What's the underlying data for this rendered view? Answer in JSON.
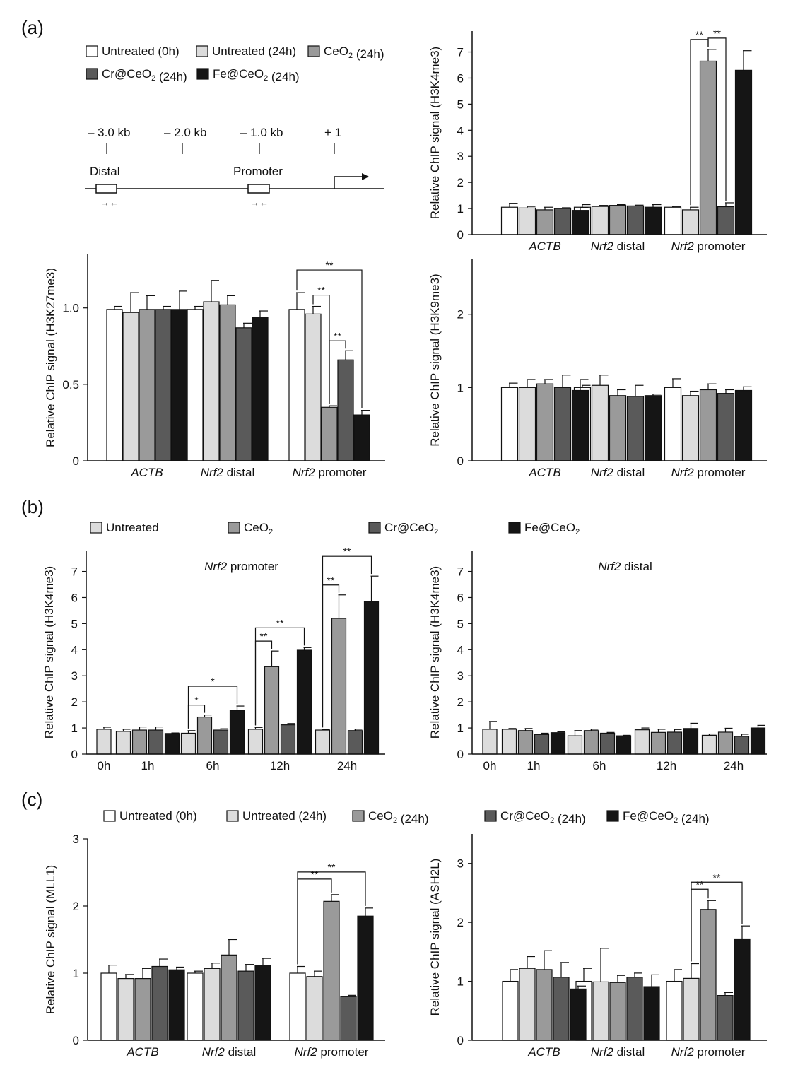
{
  "panel_labels": {
    "a": "(a)",
    "b": "(b)",
    "c": "(c)"
  },
  "colors": {
    "untreated_0h": "#ffffff",
    "untreated_24h": "#dcdcdc",
    "ceo2": "#9a9a9a",
    "cr_ceo2": "#5a5a5a",
    "fe_ceo2": "#151515",
    "axis": "#111111"
  },
  "legend_a": {
    "items": [
      {
        "key": "untreated_0h",
        "label": "Untreated (0h)"
      },
      {
        "key": "untreated_24h",
        "label": "Untreated (24h)"
      },
      {
        "key": "ceo2",
        "label": "CeO₂ (24h)"
      },
      {
        "key": "cr_ceo2",
        "label": "Cr@CeO₂ (24h)"
      },
      {
        "key": "fe_ceo2",
        "label": "Fe@CeO₂ (24h)"
      }
    ]
  },
  "gene_diagram": {
    "positions": [
      "– 3.0 kb",
      "– 2.0 kb",
      "– 1.0 kb",
      "+ 1"
    ],
    "regions": [
      "Distal",
      "Promoter"
    ],
    "arrows": "→←"
  },
  "legend_b": {
    "items": [
      {
        "key": "untreated_24h",
        "label": "Untreated"
      },
      {
        "key": "ceo2",
        "label": "CeO₂"
      },
      {
        "key": "cr_ceo2",
        "label": "Cr@CeO₂"
      },
      {
        "key": "fe_ceo2",
        "label": "Fe@CeO₂"
      }
    ]
  },
  "legend_c": {
    "items": [
      {
        "key": "untreated_0h",
        "label": "Untreated (0h)"
      },
      {
        "key": "untreated_24h",
        "label": "Untreated (24h)"
      },
      {
        "key": "ceo2",
        "label": "CeO₂ (24h)"
      },
      {
        "key": "cr_ceo2",
        "label": "Cr@CeO₂ (24h)"
      },
      {
        "key": "fe_ceo2",
        "label": "Fe@CeO₂ (24h)"
      }
    ]
  },
  "chart_data": [
    {
      "id": "a_h3k4me3",
      "type": "bar",
      "ylabel": "Relative ChIP signal (H3K4me3)",
      "ylim": [
        0,
        7.8
      ],
      "yticks": [
        "0",
        "1",
        "2",
        "3",
        "4",
        "5",
        "6",
        "7"
      ],
      "groups": [
        "ACTB",
        "Nrf2 distal",
        "Nrf2 promoter"
      ],
      "series": [
        {
          "name": "Untreated (0h)",
          "key": "untreated_0h",
          "values": [
            1.05,
            1.05,
            1.05
          ],
          "errors": [
            0.15,
            0.1,
            0.03
          ]
        },
        {
          "name": "Untreated (24h)",
          "key": "untreated_24h",
          "values": [
            1.02,
            1.08,
            0.95
          ],
          "errors": [
            0.06,
            0.04,
            0.1
          ]
        },
        {
          "name": "CeO₂ (24h)",
          "key": "ceo2",
          "values": [
            0.95,
            1.12,
            6.65
          ],
          "errors": [
            0.1,
            0.03,
            0.45
          ]
        },
        {
          "name": "Cr@CeO₂ (24h)",
          "key": "cr_ceo2",
          "values": [
            1.0,
            1.1,
            1.07
          ],
          "errors": [
            0.03,
            0.03,
            0.15
          ]
        },
        {
          "name": "Fe@CeO₂ (24h)",
          "key": "fe_ceo2",
          "values": [
            0.93,
            1.05,
            6.3
          ],
          "errors": [
            0.1,
            0.1,
            0.75
          ]
        }
      ],
      "brackets": [
        {
          "group": 2,
          "from": 1,
          "to": 2,
          "label": "**"
        },
        {
          "group": 2,
          "from": 2,
          "to": 3,
          "label": "**"
        }
      ]
    },
    {
      "id": "a_h3k27me3",
      "type": "bar",
      "ylabel": "Relative ChIP signal (H3K27me3)",
      "ylim": [
        0,
        1.35
      ],
      "yticks": [
        "0",
        "0.5",
        "1.0"
      ],
      "groups": [
        "ACTB",
        "Nrf2 distal",
        "Nrf2 promoter"
      ],
      "series": [
        {
          "name": "Untreated (0h)",
          "key": "untreated_0h",
          "values": [
            0.99,
            0.99,
            0.99
          ],
          "errors": [
            0.02,
            0.02,
            0.11
          ]
        },
        {
          "name": "Untreated (24h)",
          "key": "untreated_24h",
          "values": [
            0.97,
            1.04,
            0.96
          ],
          "errors": [
            0.13,
            0.14,
            0.05
          ]
        },
        {
          "name": "CeO₂ (24h)",
          "key": "ceo2",
          "values": [
            0.99,
            1.02,
            0.35
          ],
          "errors": [
            0.09,
            0.06,
            0.01
          ]
        },
        {
          "name": "Cr@CeO₂ (24h)",
          "key": "cr_ceo2",
          "values": [
            0.99,
            0.87,
            0.66
          ],
          "errors": [
            0.02,
            0.03,
            0.06
          ]
        },
        {
          "name": "Fe@CeO₂ (24h)",
          "key": "fe_ceo2",
          "values": [
            0.99,
            0.94,
            0.3
          ],
          "errors": [
            0.12,
            0.04,
            0.03
          ]
        }
      ],
      "brackets": [
        {
          "group": 2,
          "from": 0,
          "to": 4,
          "label": "**"
        },
        {
          "group": 2,
          "from": 1,
          "to": 2,
          "label": "**"
        },
        {
          "group": 2,
          "from": 2,
          "to": 3,
          "label": "**"
        }
      ]
    },
    {
      "id": "a_h3k9me3",
      "type": "bar",
      "ylabel": "Relative ChIP signal (H3K9me3)",
      "ylim": [
        0,
        2.75
      ],
      "yticks": [
        "0",
        "1",
        "2"
      ],
      "groups": [
        "ACTB",
        "Nrf2 distal",
        "Nrf2 promoter"
      ],
      "series": [
        {
          "name": "Untreated (0h)",
          "key": "untreated_0h",
          "values": [
            1.0,
            1.0,
            1.0
          ],
          "errors": [
            0.06,
            0.03,
            0.12
          ]
        },
        {
          "name": "Untreated (24h)",
          "key": "untreated_24h",
          "values": [
            1.0,
            1.03,
            0.89
          ],
          "errors": [
            0.11,
            0.14,
            0.06
          ]
        },
        {
          "name": "CeO₂ (24h)",
          "key": "ceo2",
          "values": [
            1.05,
            0.89,
            0.97
          ],
          "errors": [
            0.06,
            0.08,
            0.08
          ]
        },
        {
          "name": "Cr@CeO₂ (24h)",
          "key": "cr_ceo2",
          "values": [
            1.0,
            0.88,
            0.92
          ],
          "errors": [
            0.17,
            0.15,
            0.05
          ]
        },
        {
          "name": "Fe@CeO₂ (24h)",
          "key": "fe_ceo2",
          "values": [
            0.96,
            0.89,
            0.96
          ],
          "errors": [
            0.15,
            0.02,
            0.05
          ]
        }
      ],
      "brackets": []
    },
    {
      "id": "b_promoter",
      "type": "bar",
      "title": "Nrf2 promoter",
      "ylabel": "Relative ChIP signal (H3K4me3)",
      "ylim": [
        0,
        7.8
      ],
      "yticks": [
        "0",
        "1",
        "2",
        "3",
        "4",
        "5",
        "6",
        "7"
      ],
      "groups": [
        "0h",
        "1h",
        "6h",
        "12h",
        "24h"
      ],
      "series": [
        {
          "name": "Untreated",
          "key": "untreated_24h",
          "values": [
            0.95,
            0.87,
            0.8,
            0.95,
            0.92
          ],
          "errors": [
            0.08,
            0.08,
            0.1,
            0.07,
            0.02
          ]
        },
        {
          "name": "CeO₂",
          "key": "ceo2",
          "values": [
            null,
            0.92,
            1.42,
            3.35,
            5.2
          ],
          "errors": [
            null,
            0.12,
            0.08,
            0.6,
            0.9
          ]
        },
        {
          "name": "Cr@CeO₂",
          "key": "cr_ceo2",
          "values": [
            null,
            0.92,
            0.92,
            1.12,
            0.9
          ],
          "errors": [
            null,
            0.12,
            0.05,
            0.05,
            0.05
          ]
        },
        {
          "name": "Fe@CeO₂",
          "key": "fe_ceo2",
          "values": [
            null,
            0.79,
            1.67,
            3.98,
            5.85
          ],
          "errors": [
            null,
            0.02,
            0.17,
            0.1,
            0.97
          ]
        }
      ],
      "brackets": [
        {
          "group": 2,
          "from": 0,
          "to": 1,
          "label": "*"
        },
        {
          "group": 2,
          "from": 0,
          "to": 3,
          "label": "*"
        },
        {
          "group": 3,
          "from": 0,
          "to": 1,
          "label": "**"
        },
        {
          "group": 3,
          "from": 0,
          "to": 3,
          "label": "**"
        },
        {
          "group": 4,
          "from": 0,
          "to": 1,
          "label": "**"
        },
        {
          "group": 4,
          "from": 0,
          "to": 3,
          "label": "**"
        }
      ]
    },
    {
      "id": "b_distal",
      "type": "bar",
      "title": "Nrf2 distal",
      "ylabel": "Relative ChIP signal (H3K4me3)",
      "ylim": [
        0,
        7.8
      ],
      "yticks": [
        "0",
        "1",
        "2",
        "3",
        "4",
        "5",
        "6",
        "7"
      ],
      "groups": [
        "0h",
        "1h",
        "6h",
        "12h",
        "24h"
      ],
      "series": [
        {
          "name": "Untreated",
          "key": "untreated_24h",
          "values": [
            0.95,
            0.95,
            0.7,
            0.93,
            0.72
          ],
          "errors": [
            0.3,
            0.03,
            0.2,
            0.07,
            0.05
          ]
        },
        {
          "name": "CeO₂",
          "key": "ceo2",
          "values": [
            null,
            0.9,
            0.9,
            0.83,
            0.84
          ],
          "errors": [
            null,
            0.08,
            0.05,
            0.12,
            0.15
          ]
        },
        {
          "name": "Cr@CeO₂",
          "key": "cr_ceo2",
          "values": [
            null,
            0.75,
            0.8,
            0.84,
            0.68
          ],
          "errors": [
            null,
            0.05,
            0.03,
            0.1,
            0.08
          ]
        },
        {
          "name": "Fe@CeO₂",
          "key": "fe_ceo2",
          "values": [
            null,
            0.82,
            0.7,
            0.98,
            1.0
          ],
          "errors": [
            null,
            0.03,
            0.02,
            0.2,
            0.1
          ]
        }
      ],
      "brackets": []
    },
    {
      "id": "c_mll1",
      "type": "bar",
      "ylabel": "Relative ChIP signal (MLL1)",
      "ylim": [
        0,
        3.0
      ],
      "yticks": [
        "0",
        "1",
        "2",
        "3"
      ],
      "groups": [
        "ACTB",
        "Nrf2 distal",
        "Nrf2 promoter"
      ],
      "series": [
        {
          "name": "Untreated (0h)",
          "key": "untreated_0h",
          "values": [
            1.0,
            1.0,
            1.0
          ],
          "errors": [
            0.12,
            0.03,
            0.1
          ]
        },
        {
          "name": "Untreated (24h)",
          "key": "untreated_24h",
          "values": [
            0.92,
            1.07,
            0.95
          ],
          "errors": [
            0.06,
            0.08,
            0.08
          ]
        },
        {
          "name": "CeO₂ (24h)",
          "key": "ceo2",
          "values": [
            0.92,
            1.27,
            2.07
          ],
          "errors": [
            0.15,
            0.23,
            0.1
          ]
        },
        {
          "name": "Cr@CeO₂ (24h)",
          "key": "cr_ceo2",
          "values": [
            1.1,
            1.03,
            0.65
          ],
          "errors": [
            0.11,
            0.1,
            0.02
          ]
        },
        {
          "name": "Fe@CeO₂ (24h)",
          "key": "fe_ceo2",
          "values": [
            1.05,
            1.12,
            1.85
          ],
          "errors": [
            0.04,
            0.1,
            0.12
          ]
        }
      ],
      "brackets": [
        {
          "group": 2,
          "from": 0,
          "to": 4,
          "label": "**"
        },
        {
          "group": 2,
          "from": 0,
          "to": 2,
          "label": "**"
        }
      ]
    },
    {
      "id": "c_ash2l",
      "type": "bar",
      "ylabel": "Relative ChIP signal (ASH2L)",
      "ylim": [
        0,
        3.5
      ],
      "yticks": [
        "0",
        "1",
        "2",
        "3"
      ],
      "groups": [
        "ACTB",
        "Nrf2 distal",
        "Nrf2 promoter"
      ],
      "series": [
        {
          "name": "Untreated (0h)",
          "key": "untreated_0h",
          "values": [
            1.0,
            1.0,
            1.0
          ],
          "errors": [
            0.2,
            0.22,
            0.2
          ]
        },
        {
          "name": "Untreated (24h)",
          "key": "untreated_24h",
          "values": [
            1.22,
            0.99,
            1.05
          ],
          "errors": [
            0.2,
            0.57,
            0.25
          ]
        },
        {
          "name": "CeO₂ (24h)",
          "key": "ceo2",
          "values": [
            1.2,
            0.98,
            2.22
          ],
          "errors": [
            0.32,
            0.12,
            0.15
          ]
        },
        {
          "name": "Cr@CeO₂ (24h)",
          "key": "cr_ceo2",
          "values": [
            1.07,
            1.07,
            0.76
          ],
          "errors": [
            0.25,
            0.07,
            0.05
          ]
        },
        {
          "name": "Fe@CeO₂ (24h)",
          "key": "fe_ceo2",
          "values": [
            0.87,
            0.91,
            1.72
          ],
          "errors": [
            0.05,
            0.2,
            0.22
          ]
        }
      ],
      "brackets": [
        {
          "group": 2,
          "from": 1,
          "to": 4,
          "label": "**"
        },
        {
          "group": 2,
          "from": 1,
          "to": 2,
          "label": "**"
        }
      ]
    }
  ]
}
